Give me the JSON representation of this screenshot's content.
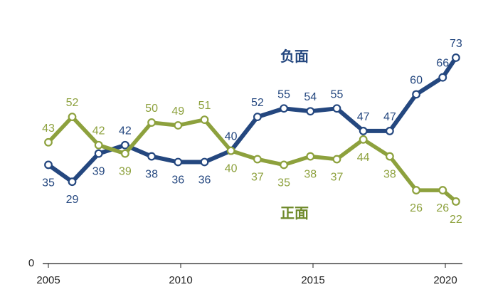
{
  "chart_data": {
    "type": "line",
    "x": [
      2005,
      2006,
      2007,
      2008,
      2009,
      2010,
      2011,
      2012,
      2013,
      2014,
      2015,
      2016,
      2017,
      2018,
      2019,
      2020
    ],
    "x_ticks": [
      "2005",
      "2010",
      "2015",
      "2020"
    ],
    "y_ticks": [
      "0"
    ],
    "xlim": [
      2005,
      2020
    ],
    "ylim": [
      0,
      80
    ],
    "grid": false,
    "title": "",
    "xlabel": "",
    "ylabel": "",
    "series": [
      {
        "name": "负面",
        "color": "#24477f",
        "values": [
          35,
          29,
          39,
          42,
          38,
          36,
          36,
          40,
          52,
          55,
          54,
          55,
          47,
          47,
          60,
          66,
          73
        ]
      },
      {
        "name": "正面",
        "color": "#8da13d",
        "values": [
          43,
          52,
          42,
          39,
          50,
          49,
          51,
          40,
          37,
          35,
          38,
          37,
          44,
          38,
          26,
          26,
          22
        ]
      }
    ],
    "x_values": [
      2005.0,
      2005.9,
      2006.9,
      2007.9,
      2008.9,
      2009.9,
      2010.9,
      2011.9,
      2012.9,
      2013.9,
      2014.9,
      2015.9,
      2016.9,
      2017.9,
      2018.9,
      2019.9,
      2020.4
    ]
  }
}
